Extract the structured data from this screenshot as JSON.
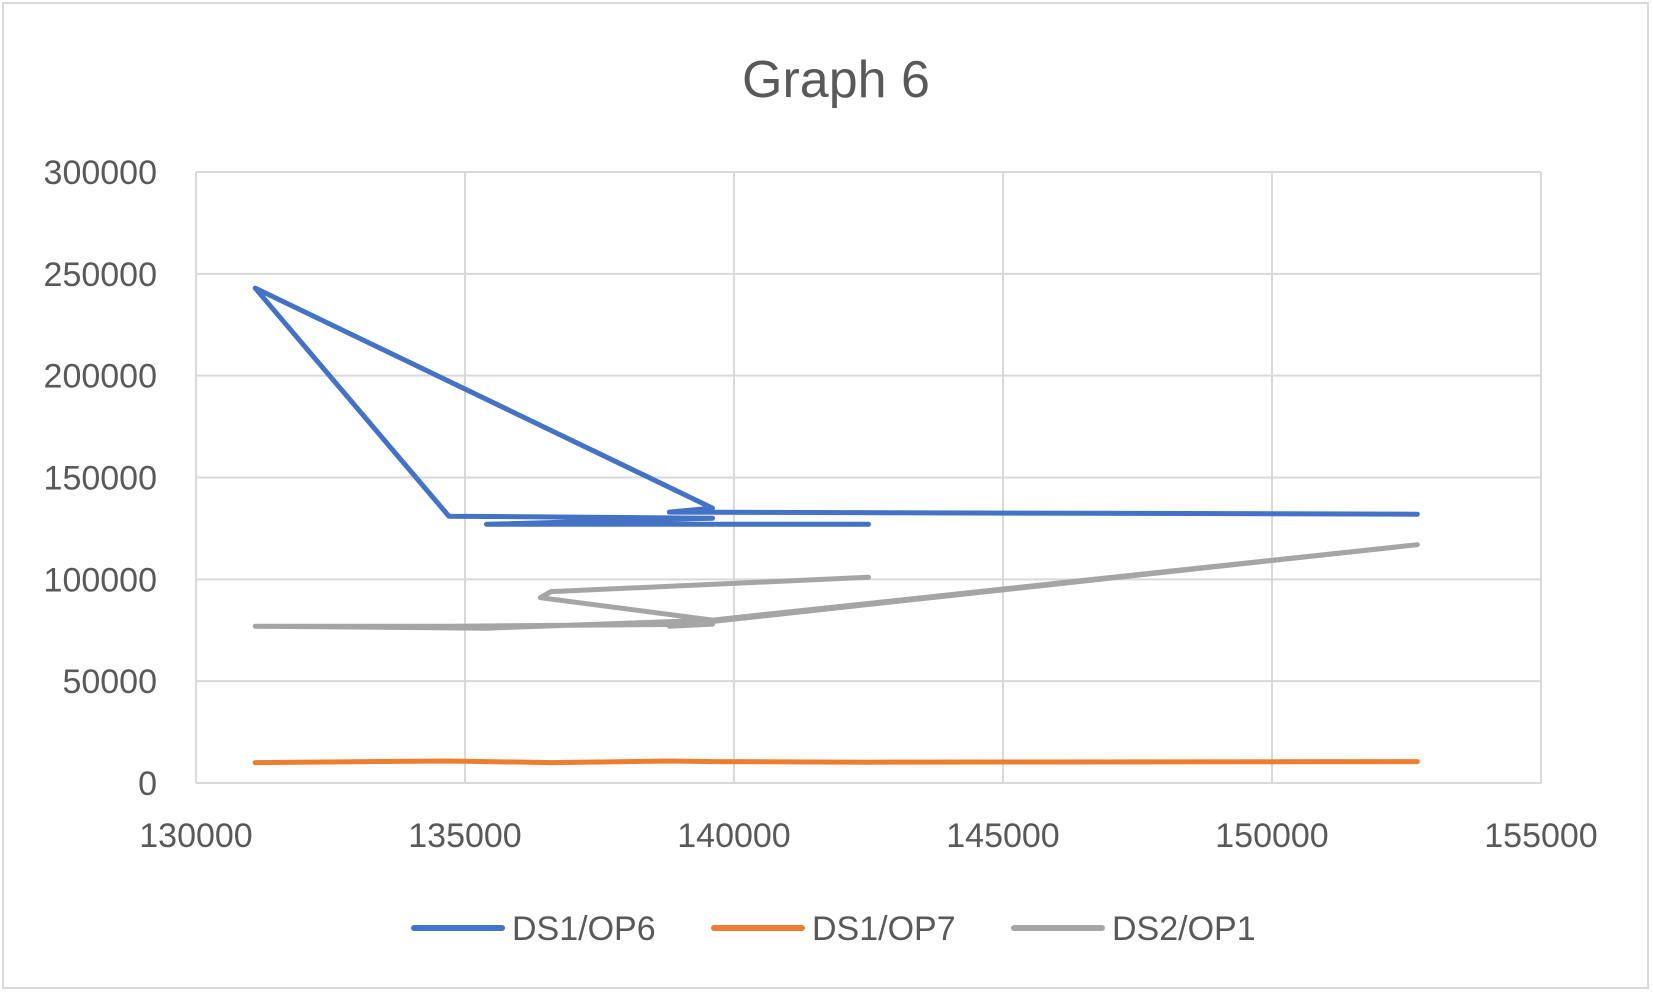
{
  "chart_data": {
    "type": "scatter",
    "title": "Graph 6",
    "xlabel": "",
    "ylabel": "",
    "xlim": [
      130000,
      155000
    ],
    "ylim": [
      0,
      300000
    ],
    "x_ticks": [
      "130000",
      "135000",
      "140000",
      "145000",
      "150000",
      "155000"
    ],
    "y_ticks": [
      "0",
      "50000",
      "100000",
      "150000",
      "200000",
      "250000",
      "300000"
    ],
    "grid": true,
    "legend_position": "bottom",
    "series": [
      {
        "name": "DS1/OP6",
        "color": "#4472c4",
        "points": [
          [
            142500,
            127000
          ],
          [
            135400,
            127000
          ],
          [
            139600,
            130000
          ],
          [
            134700,
            131000
          ],
          [
            131100,
            243000
          ],
          [
            139600,
            135000
          ],
          [
            138800,
            133000
          ],
          [
            152700,
            132000
          ]
        ]
      },
      {
        "name": "DS1/OP7",
        "color": "#ed7d31",
        "points": [
          [
            131100,
            10000
          ],
          [
            134700,
            10800
          ],
          [
            136600,
            10000
          ],
          [
            138800,
            10800
          ],
          [
            139600,
            10500
          ],
          [
            142500,
            10200
          ],
          [
            152700,
            10500
          ]
        ]
      },
      {
        "name": "DS2/OP1",
        "color": "#a5a5a5",
        "points": [
          [
            142500,
            101000
          ],
          [
            136600,
            94000
          ],
          [
            136400,
            91000
          ],
          [
            139600,
            80000
          ],
          [
            152700,
            117000
          ],
          [
            138800,
            77000
          ],
          [
            139600,
            78000
          ],
          [
            134700,
            77000
          ],
          [
            131100,
            77000
          ],
          [
            135400,
            76000
          ],
          [
            139600,
            80000
          ]
        ]
      }
    ]
  }
}
